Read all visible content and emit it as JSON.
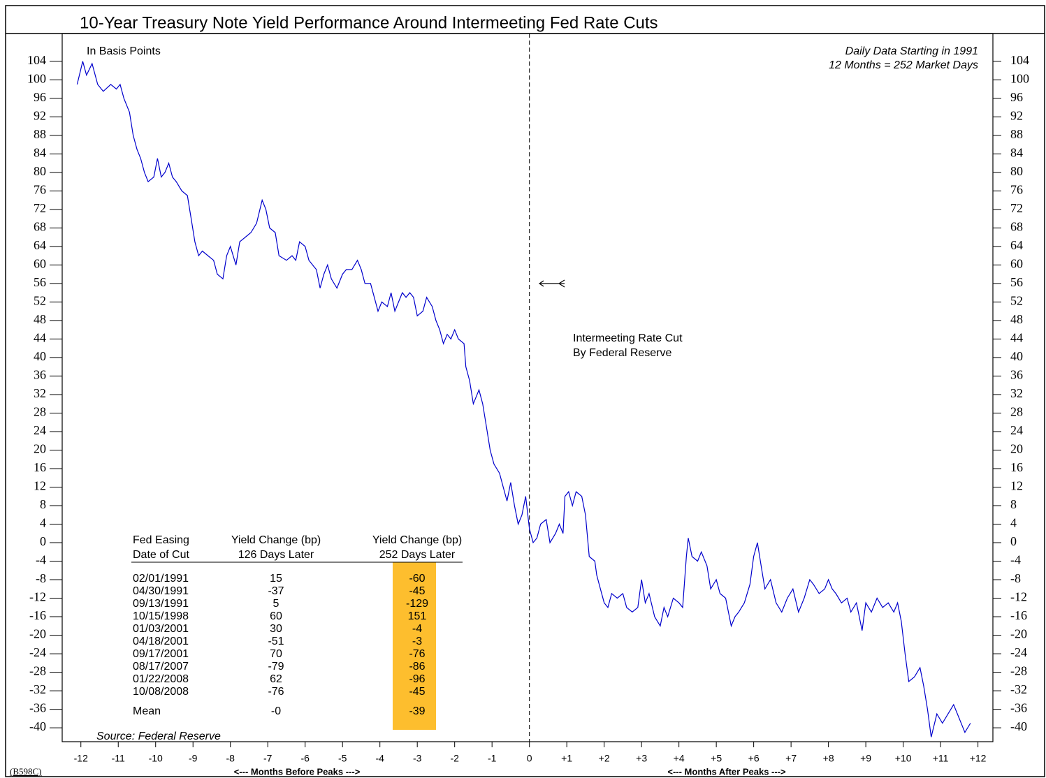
{
  "chart_data": {
    "type": "line",
    "title": "10-Year Treasury Note Yield Performance Around Intermeeting Fed Rate Cuts",
    "annotations": {
      "units": "In Basis Points",
      "data_note_1": "Daily Data Starting in 1991",
      "data_note_2": "12 Months = 252 Market Days",
      "event_1": "Intermeeting Rate Cut",
      "event_2": "By Federal Reserve",
      "source": "Source: Federal Reserve",
      "code": "(B598C)"
    },
    "xlabel_left": "<--- Months Before Peaks --->",
    "xlabel_right": "<--- Months After Peaks --->",
    "xlim": [
      -12.5,
      12.4
    ],
    "xticks": [
      -12,
      -11,
      -10,
      -9,
      -8,
      -7,
      -6,
      -5,
      -4,
      -3,
      -2,
      -1,
      0,
      {
        "value": 1,
        "label": "+1"
      },
      {
        "value": 2,
        "label": "+2"
      },
      {
        "value": 3,
        "label": "+3"
      },
      {
        "value": 4,
        "label": "+4"
      },
      {
        "value": 5,
        "label": "+5"
      },
      {
        "value": 6,
        "label": "+6"
      },
      {
        "value": 7,
        "label": "+7"
      },
      {
        "value": 8,
        "label": "+8"
      },
      {
        "value": 9,
        "label": "+9"
      },
      {
        "value": 10,
        "label": "+10"
      },
      {
        "value": 11,
        "label": "+11"
      },
      {
        "value": 12,
        "label": "+12"
      }
    ],
    "ylim": [
      -43,
      110
    ],
    "yticks": [
      -40,
      -36,
      -32,
      -28,
      -24,
      -20,
      -16,
      -12,
      -8,
      -4,
      0,
      4,
      8,
      12,
      16,
      20,
      24,
      28,
      32,
      36,
      40,
      44,
      48,
      52,
      56,
      60,
      64,
      68,
      72,
      76,
      80,
      84,
      88,
      92,
      96,
      100,
      104
    ],
    "y2lim": [
      -43,
      110
    ],
    "y2ticks": [
      -40,
      -36,
      -32,
      -28,
      -24,
      -20,
      -16,
      -12,
      -8,
      -4,
      0,
      4,
      8,
      12,
      16,
      20,
      24,
      28,
      32,
      36,
      40,
      44,
      48,
      52,
      56,
      60,
      64,
      68,
      72,
      76,
      80,
      84,
      88,
      92,
      96,
      100,
      104
    ],
    "x": [
      -12.1,
      -11.95,
      -11.85,
      -11.7,
      -11.55,
      -11.4,
      -11.2,
      -11.05,
      -10.95,
      -10.85,
      -10.7,
      -10.6,
      -10.5,
      -10.4,
      -10.3,
      -10.2,
      -10.05,
      -9.95,
      -9.85,
      -9.75,
      -9.65,
      -9.55,
      -9.45,
      -9.3,
      -9.15,
      -9.05,
      -8.95,
      -8.85,
      -8.75,
      -8.6,
      -8.45,
      -8.35,
      -8.2,
      -8.1,
      -8.0,
      -7.85,
      -7.75,
      -7.6,
      -7.45,
      -7.3,
      -7.15,
      -7.05,
      -6.95,
      -6.8,
      -6.7,
      -6.5,
      -6.35,
      -6.25,
      -6.15,
      -6.0,
      -5.9,
      -5.8,
      -5.7,
      -5.6,
      -5.5,
      -5.4,
      -5.3,
      -5.15,
      -5.0,
      -4.9,
      -4.75,
      -4.6,
      -4.5,
      -4.4,
      -4.25,
      -4.15,
      -4.05,
      -3.95,
      -3.8,
      -3.7,
      -3.6,
      -3.5,
      -3.4,
      -3.3,
      -3.2,
      -3.1,
      -3.0,
      -2.85,
      -2.75,
      -2.6,
      -2.5,
      -2.4,
      -2.3,
      -2.2,
      -2.1,
      -2.0,
      -1.9,
      -1.75,
      -1.7,
      -1.6,
      -1.5,
      -1.35,
      -1.25,
      -1.15,
      -1.05,
      -0.95,
      -0.8,
      -0.7,
      -0.6,
      -0.5,
      -0.4,
      -0.3,
      -0.2,
      -0.1,
      0.0,
      0.1,
      0.2,
      0.3,
      0.45,
      0.55,
      0.7,
      0.8,
      0.9,
      0.95,
      1.05,
      1.15,
      1.25,
      1.4,
      1.5,
      1.6,
      1.75,
      1.8,
      1.9,
      2.0,
      2.1,
      2.2,
      2.35,
      2.5,
      2.6,
      2.75,
      2.9,
      3.0,
      3.1,
      3.2,
      3.35,
      3.5,
      3.6,
      3.7,
      3.85,
      4.0,
      4.1,
      4.2,
      4.25,
      4.35,
      4.5,
      4.6,
      4.75,
      4.85,
      5.0,
      5.1,
      5.25,
      5.4,
      5.5,
      5.6,
      5.75,
      5.9,
      6.0,
      6.1,
      6.2,
      6.3,
      6.45,
      6.6,
      6.75,
      6.9,
      7.05,
      7.2,
      7.35,
      7.5,
      7.6,
      7.75,
      7.9,
      8.0,
      8.1,
      8.2,
      8.35,
      8.5,
      8.6,
      8.75,
      8.9,
      9.0,
      9.15,
      9.3,
      9.45,
      9.6,
      9.75,
      9.85,
      9.95,
      10.05,
      10.15,
      10.3,
      10.45,
      10.55,
      10.65,
      10.75,
      10.9,
      11.05,
      11.2,
      11.35,
      11.5,
      11.65,
      11.8
    ],
    "series": [
      {
        "color": "#0000cc",
        "values": [
          99,
          104,
          101,
          103.5,
          99,
          97.5,
          99,
          98,
          99,
          96,
          93,
          88,
          85,
          83,
          80,
          78,
          79,
          83,
          79,
          80,
          82,
          79,
          78,
          76,
          75,
          70,
          65,
          62,
          63,
          62,
          61,
          58,
          57,
          62,
          64,
          60,
          65,
          66,
          67,
          69,
          74,
          72,
          68,
          67,
          62,
          61,
          62,
          61,
          65,
          64,
          61,
          60,
          59,
          55,
          58,
          60,
          57,
          55,
          58,
          59,
          59,
          61,
          59,
          56,
          56,
          53,
          50,
          52,
          51,
          54,
          50,
          52,
          54,
          53,
          54,
          53,
          49,
          50,
          53,
          51,
          48,
          46,
          43,
          45,
          44,
          46,
          44,
          43,
          38,
          35,
          30,
          33,
          30,
          25,
          20,
          17,
          15,
          12,
          9,
          13,
          8,
          4,
          6,
          10,
          3,
          0,
          1,
          4,
          5,
          0,
          2,
          4,
          2,
          10,
          11,
          8,
          11,
          10,
          6,
          -3,
          -4,
          -7,
          -10,
          -13,
          -14,
          -11,
          -12,
          -11,
          -14,
          -15,
          -14,
          -8,
          -13,
          -11,
          -16,
          -18,
          -14,
          -16,
          -12,
          -13,
          -14,
          -3,
          1,
          -3,
          -4,
          -2,
          -5,
          -10,
          -8,
          -11,
          -12,
          -18,
          -16,
          -15,
          -13,
          -9,
          -3,
          0,
          -5,
          -10,
          -8,
          -13,
          -15,
          -12,
          -10,
          -15,
          -12,
          -8,
          -9,
          -11,
          -10,
          -8,
          -10,
          -11,
          -13,
          -12,
          -15,
          -13,
          -19,
          -13,
          -15,
          -12,
          -14,
          -13,
          -15,
          -13,
          -17,
          -24,
          -30,
          -29,
          -27,
          -31,
          -36,
          -42,
          -37,
          -39,
          -37,
          -35,
          -38,
          -41,
          -39
        ]
      }
    ],
    "table": {
      "header": [
        [
          "Fed Easing",
          "Yield Change (bp)",
          "Yield Change (bp)"
        ],
        [
          "Date of Cut",
          "126 Days Later",
          "252 Days Later"
        ]
      ],
      "rows": [
        [
          "02/01/1991",
          "15",
          "-60"
        ],
        [
          "04/30/1991",
          "-37",
          "-45"
        ],
        [
          "09/13/1991",
          "5",
          "-129"
        ],
        [
          "10/15/1998",
          "60",
          "151"
        ],
        [
          "01/03/2001",
          "30",
          "-4"
        ],
        [
          "04/18/2001",
          "-51",
          "-3"
        ],
        [
          "09/17/2001",
          "70",
          "-76"
        ],
        [
          "08/17/2007",
          "-79",
          "-86"
        ],
        [
          "01/22/2008",
          "62",
          "-96"
        ],
        [
          "10/08/2008",
          "-76",
          "-45"
        ]
      ],
      "mean": [
        "Mean",
        "-0",
        "-39"
      ],
      "highlight_color": "#fdbe2e"
    }
  }
}
